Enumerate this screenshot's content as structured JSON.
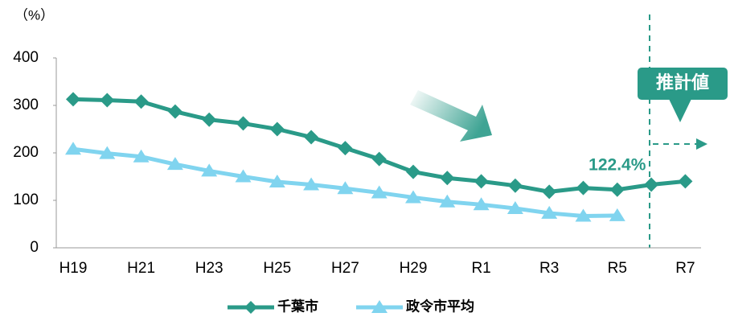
{
  "chart_data": {
    "type": "line",
    "y_unit": "（%）",
    "annotation": "推計値",
    "categories": [
      "H19",
      null,
      "H21",
      null,
      "H23",
      null,
      "H25",
      null,
      "H27",
      null,
      "H29",
      null,
      "R1",
      null,
      "R3",
      null,
      "R5",
      null,
      "R7"
    ],
    "series": [
      {
        "name": "千葉市",
        "color": "#2a9a88",
        "marker": "diamond",
        "values": [
          313,
          311,
          308,
          287,
          270,
          262,
          250,
          233,
          210,
          187,
          160,
          147,
          140,
          131,
          118,
          126,
          122.4,
          133,
          140
        ],
        "value_labels": [
          null,
          null,
          null,
          null,
          null,
          null,
          null,
          null,
          null,
          null,
          null,
          null,
          null,
          null,
          null,
          null,
          "122.4%",
          null,
          null
        ]
      },
      {
        "name": "政令市平均",
        "color": "#80d4ef",
        "marker": "triangle",
        "values": [
          208,
          199,
          192,
          176,
          162,
          150,
          139,
          133,
          125,
          116,
          106,
          97,
          91,
          83,
          73,
          67,
          68,
          null,
          null
        ]
      }
    ],
    "ylim": [
      0,
      400
    ],
    "yticks": [
      0,
      100,
      200,
      300,
      400
    ],
    "grid": false
  }
}
